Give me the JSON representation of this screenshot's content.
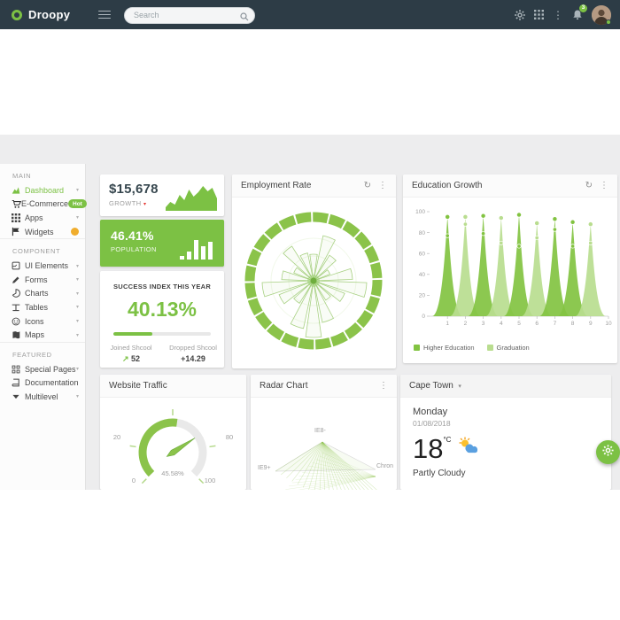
{
  "icons": {
    "caret_down": "▾",
    "kebab": "⋮",
    "refresh": "↻",
    "trend_up": "↗"
  },
  "colors": {
    "accent_green": "#7cc144",
    "dark_series": "#82c341",
    "light_series": "#b9dd8f",
    "header_bg": "#2d3c46",
    "badge_amber": "#f0ad2d",
    "caret_red": "#e53935"
  },
  "header": {
    "app_name": "Droopy",
    "search_placeholder": "Search",
    "notification_count": "3"
  },
  "sidebar": {
    "sections": [
      {
        "label": "MAIN",
        "items": [
          {
            "label": "Dashboard"
          },
          {
            "label": "E-Commerce",
            "badge": "Hot"
          },
          {
            "label": "Apps"
          },
          {
            "label": "Widgets"
          }
        ]
      },
      {
        "label": "COMPONENT",
        "items": [
          {
            "label": "UI Elements"
          },
          {
            "label": "Forms"
          },
          {
            "label": "Charts"
          },
          {
            "label": "Tables"
          },
          {
            "label": "Icons"
          },
          {
            "label": "Maps"
          }
        ]
      },
      {
        "label": "FEATURED",
        "items": [
          {
            "label": "Special Pages"
          },
          {
            "label": "Documentation"
          },
          {
            "label": "Multilevel"
          }
        ]
      }
    ]
  },
  "main": {
    "growth": {
      "value": "$15,678",
      "label": "GROWTH"
    },
    "population": {
      "value": "46.41%",
      "label": "POPULATION"
    },
    "success": {
      "title": "SUCCESS INDEX THIS YEAR",
      "value": "40.13%",
      "progress_pct": 40,
      "joined_label": "Joined Shcool",
      "joined_value": "52",
      "dropped_label": "Dropped Shcool",
      "dropped_value": "+14.29"
    },
    "employment": {
      "title": "Employment Rate"
    },
    "education": {
      "title": "Education Growth",
      "legend": [
        "Higher Education",
        "Graduation"
      ]
    },
    "traffic": {
      "title": "Website Traffic"
    },
    "radar": {
      "title": "Radar Chart",
      "labels": [
        "IE8-",
        "IE9+",
        "Chron"
      ]
    },
    "weather": {
      "title": "Cape Town",
      "day": "Monday",
      "date": "01/08/2018",
      "temp": "18",
      "unit": "°C",
      "condition": "Partly Cloudy"
    }
  },
  "chart_data": [
    {
      "id": "growth-spark",
      "type": "area",
      "title": "Growth sparkline",
      "values": [
        2,
        8,
        5,
        16,
        10,
        22,
        14,
        19,
        26,
        20,
        24,
        12
      ],
      "color": "#7cc144"
    },
    {
      "id": "population-bars",
      "type": "bar",
      "title": "Population bars",
      "values": [
        4,
        9,
        22,
        15,
        20
      ],
      "color": "#ffffff"
    },
    {
      "id": "employment-rose",
      "type": "polar-rose",
      "title": "Employment Rate",
      "ring_segments": 24,
      "wedges": [
        30,
        52,
        34,
        20,
        44,
        60,
        38,
        26,
        48,
        64,
        55,
        30,
        42,
        58,
        36,
        24,
        46,
        32
      ],
      "ring_color": "#8bc34a",
      "wedge_color": "#a9d184"
    },
    {
      "id": "education-spikes",
      "type": "area-spikes",
      "title": "Education Growth",
      "xlabel": "",
      "ylabel": "",
      "ylim": [
        0,
        100
      ],
      "yticks": [
        0,
        20,
        40,
        60,
        80,
        100
      ],
      "xticks": [
        1,
        2,
        3,
        4,
        5,
        6,
        7,
        8,
        9,
        10
      ],
      "series_names": [
        "Higher Education",
        "Graduation"
      ],
      "spikes": [
        {
          "x": 1,
          "series": "dark",
          "peak": 95,
          "mid": 77
        },
        {
          "x": 2,
          "series": "light",
          "peak": 95,
          "mid": 88
        },
        {
          "x": 3,
          "series": "dark",
          "peak": 96,
          "mid": 79
        },
        {
          "x": 4,
          "series": "light",
          "peak": 94,
          "mid": 70
        },
        {
          "x": 5,
          "series": "dark",
          "peak": 97,
          "mid": 67
        },
        {
          "x": 6,
          "series": "light",
          "peak": 89,
          "mid": 75
        },
        {
          "x": 7,
          "series": "dark",
          "peak": 93,
          "mid": 83
        },
        {
          "x": 8,
          "series": "dark",
          "peak": 90,
          "mid": 67
        },
        {
          "x": 9,
          "series": "light",
          "peak": 88,
          "mid": 70
        }
      ]
    },
    {
      "id": "traffic-gauge",
      "type": "gauge",
      "title": "Website Traffic",
      "value": 45.58,
      "value_label": "45.58%",
      "min": 0,
      "max": 100,
      "tick_labels": [
        "0",
        "20",
        "80",
        "100"
      ],
      "green_fraction": 0.53,
      "needle_fraction": 0.71,
      "arc_color": "#8bc34a",
      "track_color": "#e9e9e9"
    },
    {
      "id": "radar-fan",
      "type": "radar",
      "title": "Radar Chart",
      "axes": [
        "IE8-",
        "IE9+",
        "Chron"
      ],
      "line_color": "#8bc34a"
    }
  ]
}
